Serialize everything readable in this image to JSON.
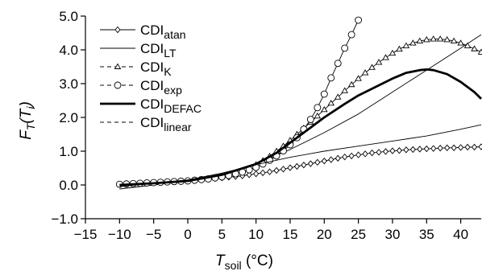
{
  "chart_data": {
    "type": "line",
    "xlabel": {
      "main": "T",
      "sub": "soil",
      "unit": " (°C)"
    },
    "ylabel": {
      "main": "F",
      "sub": "T",
      "paren": "(T",
      "sub2": "i",
      "close": ")"
    },
    "xlim": [
      -15,
      43
    ],
    "ylim": [
      -1.0,
      5.0
    ],
    "xticks": [
      -15,
      -10,
      -5,
      0,
      5,
      10,
      15,
      20,
      25,
      30,
      35,
      40
    ],
    "xtick_labels": [
      "−15",
      "−10",
      "−5",
      "0",
      "5",
      "10",
      "15",
      "20",
      "25",
      "30",
      "35",
      "40"
    ],
    "yticks": [
      -1.0,
      0.0,
      1.0,
      2.0,
      3.0,
      4.0,
      5.0
    ],
    "ytick_labels": [
      "−1.0",
      "0.0",
      "1.0",
      "2.0",
      "3.0",
      "4.0",
      "5.0"
    ],
    "grid": false,
    "legend_position": "top-left",
    "series": [
      {
        "name": "CDI",
        "sub": "atan",
        "style": "line-diamond-markers",
        "x": [
          -10,
          -9,
          -8,
          -7,
          -6,
          -5,
          -4,
          -3,
          -2,
          -1,
          0,
          1,
          2,
          3,
          4,
          5,
          6,
          7,
          8,
          9,
          10,
          11,
          12,
          13,
          14,
          15,
          16,
          17,
          18,
          19,
          20,
          21,
          22,
          23,
          24,
          25,
          26,
          27,
          28,
          29,
          30,
          31,
          32,
          33,
          34,
          35,
          36,
          37,
          38,
          39,
          40,
          41,
          42,
          43
        ],
        "y": [
          0.02,
          0.03,
          0.04,
          0.05,
          0.06,
          0.07,
          0.08,
          0.09,
          0.1,
          0.11,
          0.13,
          0.14,
          0.15,
          0.17,
          0.19,
          0.21,
          0.23,
          0.25,
          0.27,
          0.3,
          0.33,
          0.36,
          0.39,
          0.43,
          0.47,
          0.51,
          0.55,
          0.59,
          0.63,
          0.67,
          0.71,
          0.75,
          0.79,
          0.83,
          0.86,
          0.89,
          0.92,
          0.95,
          0.97,
          0.99,
          1.01,
          1.02,
          1.04,
          1.05,
          1.06,
          1.07,
          1.08,
          1.09,
          1.1,
          1.1,
          1.11,
          1.12,
          1.12,
          1.13
        ]
      },
      {
        "name": "CDI",
        "sub": "LT",
        "style": "thin-line",
        "x": [
          -10,
          -5,
          0,
          5,
          10,
          15,
          20,
          25,
          30,
          35,
          40,
          43
        ],
        "y": [
          -0.12,
          0.0,
          0.13,
          0.32,
          0.62,
          1.05,
          1.55,
          2.1,
          2.75,
          3.4,
          4.05,
          4.45
        ]
      },
      {
        "name": "CDI",
        "sub": "K",
        "style": "line-triangle-markers",
        "x": [
          10,
          11,
          12,
          13,
          14,
          15,
          16,
          17,
          18,
          19,
          20,
          21,
          22,
          23,
          24,
          25,
          26,
          27,
          28,
          29,
          30,
          31,
          32,
          33,
          34,
          35,
          36,
          37,
          38,
          39,
          40,
          41,
          42,
          43
        ],
        "y": [
          0.6,
          0.72,
          0.85,
          1.0,
          1.15,
          1.32,
          1.5,
          1.68,
          1.86,
          2.04,
          2.23,
          2.42,
          2.6,
          2.79,
          2.97,
          3.15,
          3.32,
          3.48,
          3.63,
          3.77,
          3.9,
          4.02,
          4.12,
          4.2,
          4.26,
          4.3,
          4.32,
          4.32,
          4.3,
          4.26,
          4.2,
          4.12,
          4.03,
          3.93
        ]
      },
      {
        "name": "CDI",
        "sub": "exp",
        "style": "line-circle-markers",
        "x": [
          -10,
          -9,
          -8,
          -7,
          -6,
          -5,
          -4,
          -3,
          -2,
          -1,
          0,
          1,
          2,
          3,
          4,
          5,
          6,
          7,
          8,
          9,
          10,
          11,
          12,
          13,
          14,
          15,
          16,
          17,
          18,
          19,
          20,
          21,
          22,
          23,
          24,
          25
        ],
        "y": [
          0.02,
          0.03,
          0.04,
          0.05,
          0.06,
          0.07,
          0.08,
          0.09,
          0.1,
          0.11,
          0.12,
          0.14,
          0.16,
          0.18,
          0.21,
          0.24,
          0.28,
          0.33,
          0.38,
          0.45,
          0.52,
          0.62,
          0.73,
          0.86,
          1.01,
          1.19,
          1.4,
          1.65,
          1.94,
          2.29,
          2.69,
          3.17,
          3.6,
          4.05,
          4.45,
          4.88
        ]
      },
      {
        "name": "CDI",
        "sub": "DEFAC",
        "style": "thick-line",
        "x": [
          -10,
          -5,
          0,
          5,
          10,
          13,
          15,
          18,
          20,
          23,
          25,
          28,
          30,
          32,
          34,
          35,
          36,
          38,
          40,
          42,
          43
        ],
        "y": [
          0.0,
          0.05,
          0.12,
          0.3,
          0.62,
          0.95,
          1.25,
          1.7,
          2.0,
          2.4,
          2.65,
          2.95,
          3.15,
          3.32,
          3.4,
          3.42,
          3.4,
          3.28,
          3.05,
          2.75,
          2.55
        ]
      },
      {
        "name": "CDI",
        "sub": "linear",
        "style": "thin-line",
        "x": [
          -10,
          -5,
          0,
          5,
          10,
          15,
          20,
          25,
          30,
          35,
          40,
          43
        ],
        "y": [
          -0.05,
          0.05,
          0.15,
          0.35,
          0.6,
          0.82,
          1.0,
          1.15,
          1.3,
          1.45,
          1.65,
          1.78
        ]
      }
    ]
  }
}
